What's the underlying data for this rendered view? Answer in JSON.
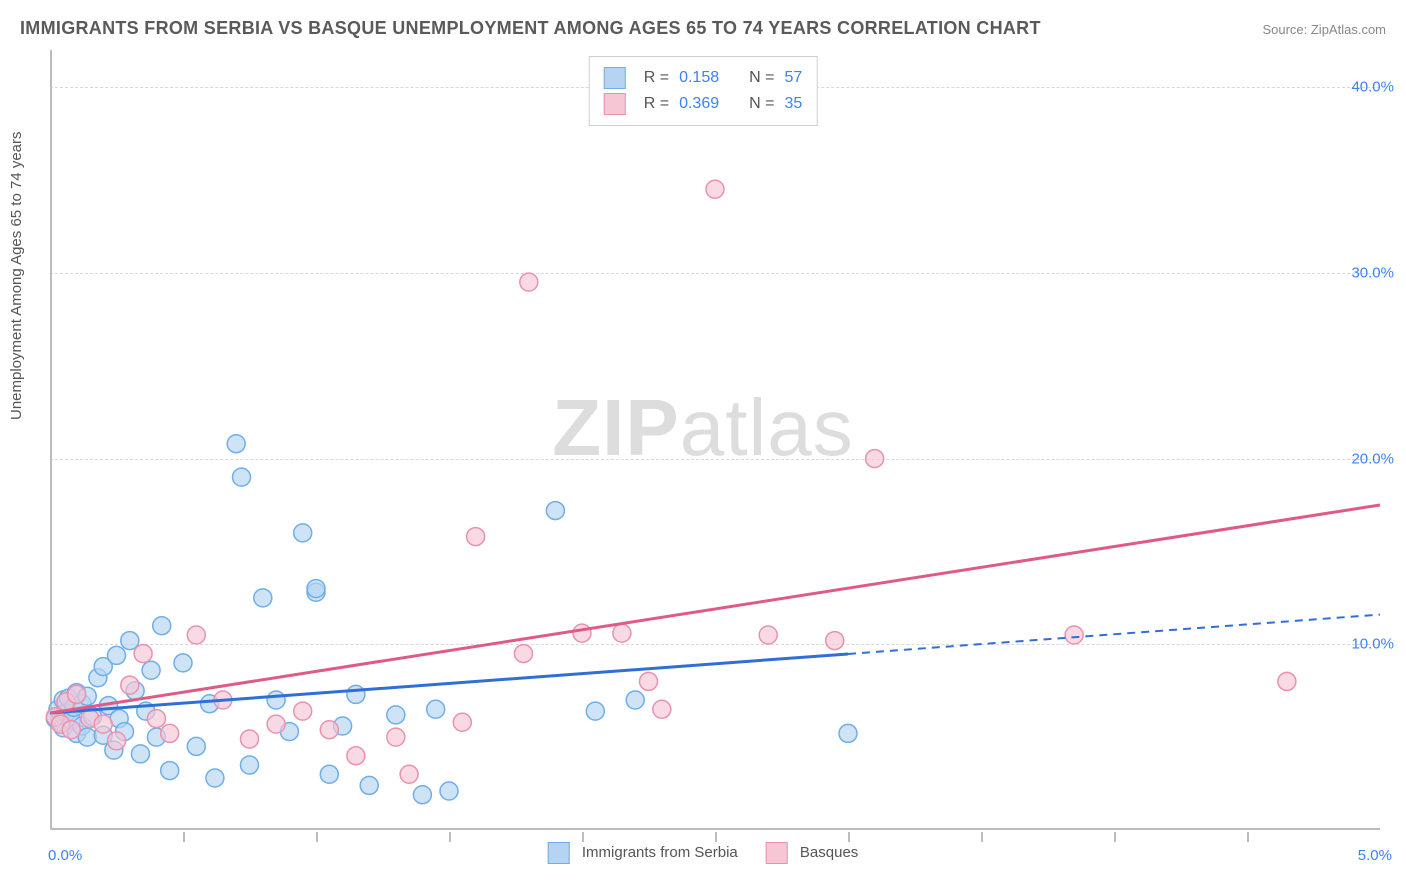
{
  "title": "IMMIGRANTS FROM SERBIA VS BASQUE UNEMPLOYMENT AMONG AGES 65 TO 74 YEARS CORRELATION CHART",
  "source": "Source: ZipAtlas.com",
  "watermark_bold": "ZIP",
  "watermark_light": "atlas",
  "chart": {
    "type": "scatter",
    "ylabel": "Unemployment Among Ages 65 to 74 years",
    "xlim": [
      0,
      5.0
    ],
    "ylim": [
      0,
      42
    ],
    "x_origin_label": "0.0%",
    "x_max_label": "5.0%",
    "x_tick_positions": [
      0.5,
      1.0,
      1.5,
      2.0,
      2.5,
      3.0,
      3.5,
      4.0,
      4.5
    ],
    "y_ticks": [
      {
        "v": 10,
        "label": "10.0%"
      },
      {
        "v": 20,
        "label": "20.0%"
      },
      {
        "v": 30,
        "label": "30.0%"
      },
      {
        "v": 40,
        "label": "40.0%"
      }
    ],
    "axis_color": "#bdbdbd",
    "grid_color": "#d8d8d8",
    "tick_label_color": "#3b82f6",
    "label_color": "#555555",
    "background_color": "#ffffff",
    "marker_radius": 9,
    "marker_stroke_width": 1.5,
    "series": [
      {
        "name": "Immigrants from Serbia",
        "fill": "#b6d4f2",
        "stroke": "#6faee8",
        "fill_opacity": 0.65,
        "R": "0.158",
        "N": "57",
        "trend": {
          "x1": 0.0,
          "y1": 6.3,
          "x2_solid": 3.0,
          "x2": 5.0,
          "y2": 11.6,
          "color": "#2f6fd6",
          "width": 3,
          "dash_after_solid": true
        },
        "points": [
          [
            0.02,
            6.0
          ],
          [
            0.03,
            6.5
          ],
          [
            0.04,
            5.8
          ],
          [
            0.05,
            7.0
          ],
          [
            0.05,
            5.5
          ],
          [
            0.06,
            6.3
          ],
          [
            0.07,
            7.1
          ],
          [
            0.08,
            5.9
          ],
          [
            0.09,
            6.6
          ],
          [
            0.1,
            5.2
          ],
          [
            0.1,
            7.4
          ],
          [
            0.12,
            6.8
          ],
          [
            0.12,
            5.6
          ],
          [
            0.14,
            7.2
          ],
          [
            0.14,
            5.0
          ],
          [
            0.16,
            6.1
          ],
          [
            0.18,
            8.2
          ],
          [
            0.2,
            5.1
          ],
          [
            0.2,
            8.8
          ],
          [
            0.22,
            6.7
          ],
          [
            0.24,
            4.3
          ],
          [
            0.25,
            9.4
          ],
          [
            0.26,
            6.0
          ],
          [
            0.28,
            5.3
          ],
          [
            0.3,
            10.2
          ],
          [
            0.32,
            7.5
          ],
          [
            0.34,
            4.1
          ],
          [
            0.36,
            6.4
          ],
          [
            0.38,
            8.6
          ],
          [
            0.4,
            5.0
          ],
          [
            0.42,
            11.0
          ],
          [
            0.45,
            3.2
          ],
          [
            0.5,
            9.0
          ],
          [
            0.55,
            4.5
          ],
          [
            0.6,
            6.8
          ],
          [
            0.62,
            2.8
          ],
          [
            0.7,
            20.8
          ],
          [
            0.72,
            19.0
          ],
          [
            0.75,
            3.5
          ],
          [
            0.8,
            12.5
          ],
          [
            0.85,
            7.0
          ],
          [
            0.9,
            5.3
          ],
          [
            0.95,
            16.0
          ],
          [
            1.0,
            12.8
          ],
          [
            1.0,
            13.0
          ],
          [
            1.05,
            3.0
          ],
          [
            1.1,
            5.6
          ],
          [
            1.15,
            7.3
          ],
          [
            1.2,
            2.4
          ],
          [
            1.3,
            6.2
          ],
          [
            1.4,
            1.9
          ],
          [
            1.45,
            6.5
          ],
          [
            1.5,
            2.1
          ],
          [
            1.9,
            17.2
          ],
          [
            2.05,
            6.4
          ],
          [
            2.2,
            7.0
          ],
          [
            3.0,
            5.2
          ]
        ]
      },
      {
        "name": "Basques",
        "fill": "#f6c6d5",
        "stroke": "#ea91ae",
        "fill_opacity": 0.65,
        "R": "0.369",
        "N": "35",
        "trend": {
          "x1": 0.0,
          "y1": 6.3,
          "x2_solid": 5.0,
          "x2": 5.0,
          "y2": 17.5,
          "color": "#e05a86",
          "width": 3,
          "dash_after_solid": false
        },
        "points": [
          [
            0.02,
            6.1
          ],
          [
            0.04,
            5.7
          ],
          [
            0.06,
            6.9
          ],
          [
            0.08,
            5.4
          ],
          [
            0.1,
            7.3
          ],
          [
            0.15,
            6.0
          ],
          [
            0.2,
            5.7
          ],
          [
            0.25,
            4.8
          ],
          [
            0.3,
            7.8
          ],
          [
            0.35,
            9.5
          ],
          [
            0.4,
            6.0
          ],
          [
            0.45,
            5.2
          ],
          [
            0.55,
            10.5
          ],
          [
            0.65,
            7.0
          ],
          [
            0.75,
            4.9
          ],
          [
            0.85,
            5.7
          ],
          [
            0.95,
            6.4
          ],
          [
            1.05,
            5.4
          ],
          [
            1.15,
            4.0
          ],
          [
            1.3,
            5.0
          ],
          [
            1.35,
            3.0
          ],
          [
            1.55,
            5.8
          ],
          [
            1.6,
            15.8
          ],
          [
            1.78,
            9.5
          ],
          [
            1.8,
            29.5
          ],
          [
            2.0,
            10.6
          ],
          [
            2.15,
            10.6
          ],
          [
            2.25,
            8.0
          ],
          [
            2.3,
            6.5
          ],
          [
            2.5,
            34.5
          ],
          [
            2.7,
            10.5
          ],
          [
            2.95,
            10.2
          ],
          [
            3.1,
            20.0
          ],
          [
            3.85,
            10.5
          ],
          [
            4.65,
            8.0
          ]
        ]
      }
    ],
    "top_legend": {
      "r_label": "R =",
      "n_label": "N ="
    },
    "bottom_legend_labels": [
      "Immigrants from Serbia",
      "Basques"
    ]
  }
}
